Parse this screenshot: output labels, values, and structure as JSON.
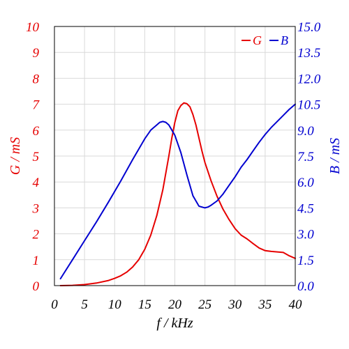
{
  "chart_data": {
    "type": "line",
    "title": "",
    "xlabel": "f / kHz",
    "ylabel_left": "G / mS",
    "ylabel_right": "B / mS",
    "xlim": [
      0,
      40
    ],
    "ylim_left": [
      0,
      10
    ],
    "ylim_right": [
      0,
      15
    ],
    "x_ticks": [
      "0",
      "5",
      "10",
      "15",
      "20",
      "25",
      "30",
      "35",
      "40"
    ],
    "y_left_ticks": [
      "0",
      "1",
      "2",
      "3",
      "4",
      "5",
      "6",
      "7",
      "8",
      "9",
      "10"
    ],
    "y_right_ticks": [
      "0.0",
      "1.5",
      "3.0",
      "4.5",
      "6.0",
      "7.5",
      "9.0",
      "10.5",
      "12.0",
      "13.5",
      "15.0"
    ],
    "grid": true,
    "legend_position": "top-right",
    "colors": {
      "G": "#e60000",
      "B": "#0000d0",
      "grid": "#d9d9d9",
      "axis": "#000000"
    },
    "series": [
      {
        "name": "G",
        "axis": "left",
        "x": [
          1,
          3,
          5,
          7,
          9,
          10,
          11,
          12,
          13,
          14,
          15,
          16,
          17,
          18,
          19,
          19.5,
          20,
          20.5,
          21,
          21.5,
          22,
          22.5,
          23,
          23.5,
          24,
          24.5,
          25,
          26,
          27,
          28,
          29,
          30,
          31,
          32,
          33,
          34,
          35,
          36,
          37,
          38,
          39,
          40
        ],
        "y": [
          0.0,
          0.01,
          0.04,
          0.1,
          0.2,
          0.28,
          0.38,
          0.52,
          0.72,
          1.0,
          1.4,
          1.95,
          2.7,
          3.7,
          5.0,
          5.7,
          6.3,
          6.75,
          6.95,
          7.05,
          7.02,
          6.9,
          6.6,
          6.2,
          5.7,
          5.2,
          4.75,
          4.05,
          3.45,
          2.95,
          2.55,
          2.2,
          1.95,
          1.8,
          1.62,
          1.45,
          1.35,
          1.32,
          1.3,
          1.28,
          1.15,
          1.05
        ]
      },
      {
        "name": "B",
        "axis": "right",
        "x": [
          1,
          3,
          5,
          7,
          9,
          11,
          13,
          15,
          16,
          17,
          17.5,
          18,
          18.5,
          19,
          19.5,
          20,
          21,
          22,
          23,
          24,
          25,
          25.5,
          26,
          27,
          28,
          29,
          30,
          31,
          32,
          33,
          34,
          35,
          36,
          37,
          38,
          39,
          40
        ],
        "y": [
          0.4,
          1.5,
          2.6,
          3.7,
          4.85,
          6.05,
          7.3,
          8.5,
          9.0,
          9.3,
          9.45,
          9.5,
          9.45,
          9.3,
          9.0,
          8.7,
          7.7,
          6.4,
          5.2,
          4.6,
          4.5,
          4.55,
          4.65,
          4.9,
          5.3,
          5.8,
          6.3,
          6.85,
          7.3,
          7.8,
          8.3,
          8.75,
          9.15,
          9.5,
          9.85,
          10.2,
          10.5
        ]
      }
    ]
  }
}
